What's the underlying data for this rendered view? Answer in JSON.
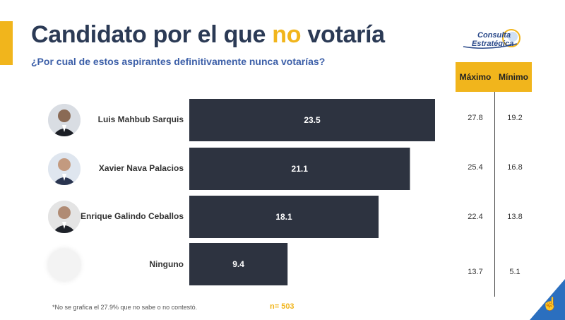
{
  "header": {
    "title_pre": "Candidato por el que ",
    "title_hl": "no",
    "title_post": " votaría",
    "subtitle": "¿Por cual de estos aspirantes definitivamente nunca votarías?"
  },
  "logo": {
    "line1": "Consulta",
    "line2": "Estratégica"
  },
  "table": {
    "col_max": "Máximo",
    "col_min": "Mínimo"
  },
  "footer": {
    "note": "*No se grafica el 27.9% que no sabe o no contestó.",
    "sample": "n= 503"
  },
  "colors": {
    "bar": "#2d3340",
    "accent": "#f1b51c",
    "title": "#2b3a55",
    "subtitle": "#3c5fa8"
  },
  "chart_data": {
    "type": "bar",
    "orientation": "horizontal",
    "categories": [
      "Luis Mahbub Sarquis",
      "Xavier Nava Palacios",
      "Enrique Galindo Ceballos",
      "Ninguno"
    ],
    "values": [
      23.5,
      21.1,
      18.1,
      9.4
    ],
    "value_labels": [
      "23.5",
      "21.1",
      "18.1",
      "9.4"
    ],
    "max": [
      "27.8",
      "25.4",
      "22.4",
      "13.7"
    ],
    "min": [
      "19.2",
      "16.8",
      "13.8",
      "5.1"
    ],
    "xlim": [
      0,
      23.5
    ]
  }
}
